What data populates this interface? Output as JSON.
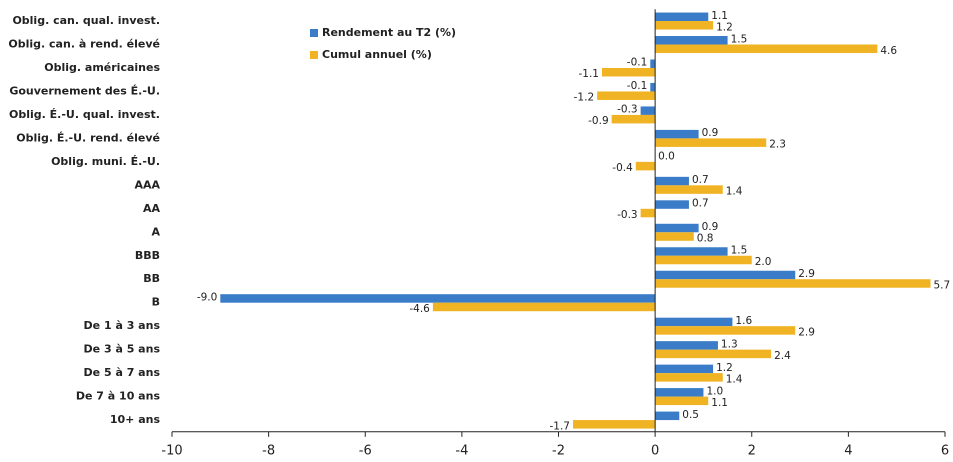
{
  "chart_data": {
    "type": "barh",
    "categories": [
      "Oblig. can. qual. invest.",
      "Oblig. can. à rend. élevé",
      "Oblig. américaines",
      "Gouvernement des É.-U.",
      "Oblig. É.-U. qual. invest.",
      "Oblig. É.-U. rend. élevé",
      "Oblig. muni. É.-U.",
      "AAA",
      "AA",
      "A",
      "BBB",
      "BB",
      "B",
      "De 1 à 3 ans",
      "De 3 à 5 ans",
      "De 5 à 7 ans",
      "De 7 à 10 ans",
      "10+ ans"
    ],
    "series": [
      {
        "name": "Rendement au T2 (%)",
        "color": "#3a7cc7",
        "values": [
          1.1,
          1.5,
          -0.1,
          -0.1,
          -0.3,
          0.9,
          0.0,
          0.7,
          0.7,
          0.9,
          1.5,
          2.9,
          -9.0,
          1.6,
          1.3,
          1.2,
          1.0,
          0.5
        ],
        "value_labels": [
          "1.1",
          "1.5",
          "-0.1",
          "-0.1",
          "-0.3",
          "0.9",
          "0.0",
          "0.7",
          "0.7",
          "0.9",
          "1.5",
          "2.9",
          "-9.0",
          "1.6",
          "1.3",
          "1.2",
          "1.0",
          "0.5"
        ]
      },
      {
        "name": "Cumul annuel (%)",
        "color": "#f0b323",
        "values": [
          1.2,
          4.6,
          -1.1,
          -1.2,
          -0.9,
          2.3,
          -0.4,
          1.4,
          -0.3,
          0.8,
          2.0,
          5.7,
          -4.6,
          2.9,
          2.4,
          1.4,
          1.1,
          -1.7
        ],
        "value_labels": [
          "1.2",
          "4.6",
          "-1.1",
          "-1.2",
          "-0.9",
          "2.3",
          "-0.4",
          "1.4",
          "-0.3",
          "0.8",
          "2.0",
          "5.7",
          "-4.6",
          "2.9",
          "2.4",
          "1.4",
          "1.1",
          "-1.7"
        ]
      }
    ],
    "xlim": [
      -10,
      6
    ],
    "xticks": [
      -10,
      -8,
      -6,
      -4,
      -2,
      0,
      2,
      4,
      6
    ],
    "grid": false,
    "legend": "top"
  }
}
